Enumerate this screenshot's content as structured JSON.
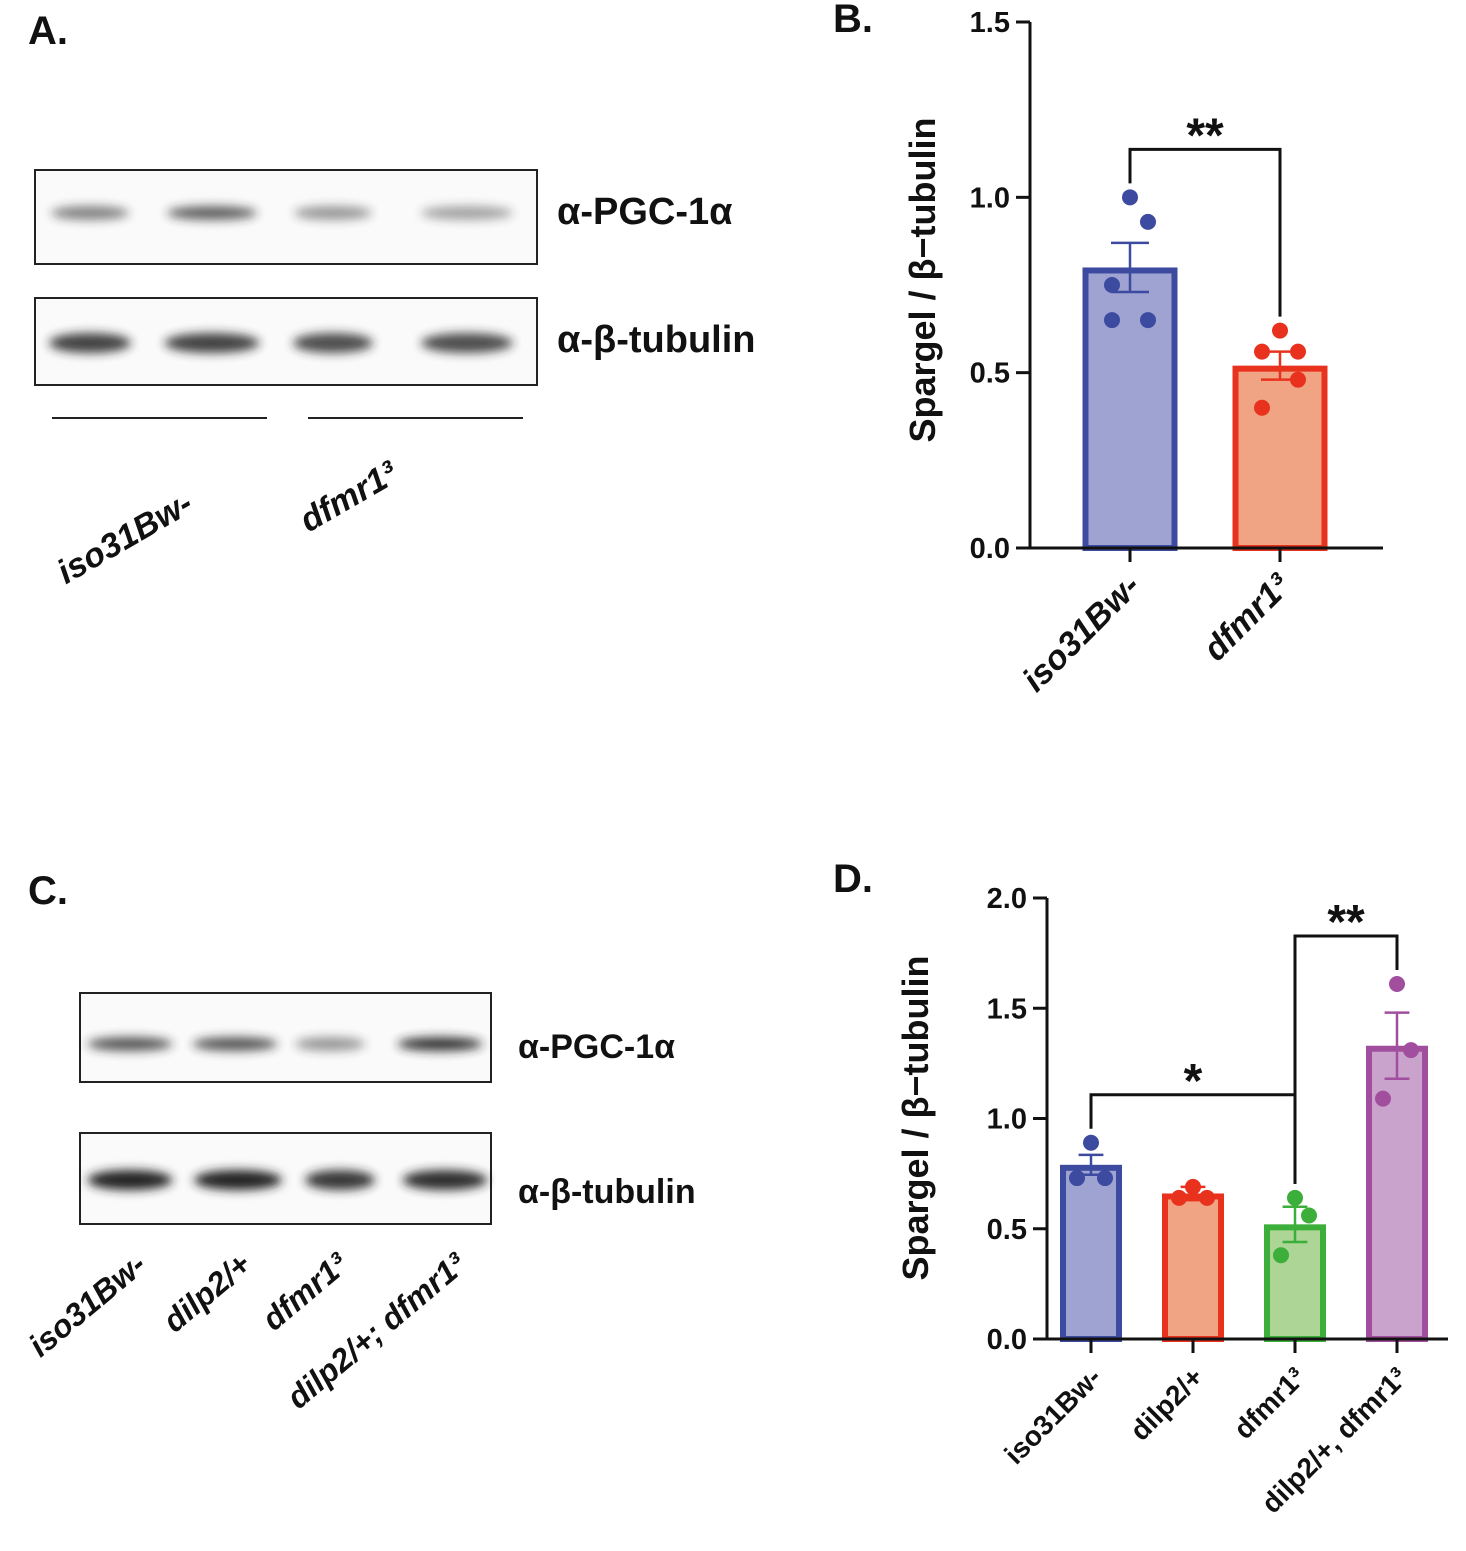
{
  "blots": [
    {
      "panel_label": "A.",
      "bands": [
        "α-PGC-1α",
        "α-β-tubulin"
      ],
      "lanes": [
        "iso31Bw-",
        "dfmr1³"
      ]
    },
    {
      "panel_label": "C.",
      "bands": [
        "α-PGC-1α",
        "α-β-tubulin"
      ],
      "lanes": [
        "iso31Bw-",
        "dilp2/+",
        "dfmr1³",
        "dilp2/+; dfmr1³"
      ]
    }
  ],
  "chart_data": [
    {
      "type": "bar",
      "panel_label": "B.",
      "y_label": "Spargel / β−tubulin",
      "categories": [
        "iso31Bw-",
        "dfmr1³"
      ],
      "values": [
        0.8,
        0.52
      ],
      "errors": [
        0.07,
        0.04
      ],
      "points": [
        [
          1.0,
          0.93,
          0.75,
          0.65,
          0.65
        ],
        [
          0.62,
          0.56,
          0.56,
          0.48,
          0.4
        ]
      ],
      "colors": [
        "#9fa3d2",
        "#f0a483"
      ],
      "edge_colors": [
        "#3c4aa0",
        "#e8321e"
      ],
      "ylim": [
        0,
        1.5
      ],
      "yticks": [
        {
          "value": 0,
          "label": "0.0"
        },
        0.5,
        {
          "value": 1,
          "label": "1.0"
        },
        1.5
      ],
      "comparisons": [
        {
          "label": "**",
          "between": [
            0,
            1
          ]
        }
      ]
    },
    {
      "type": "bar",
      "panel_label": "D.",
      "y_label": "Spargel / β−tubulin",
      "categories": [
        "iso31Bw-",
        "dilp2/+",
        "dfmr1³",
        "dilp2/+, dfmr1³"
      ],
      "values": [
        0.79,
        0.66,
        0.52,
        1.33
      ],
      "errors": [
        0.045,
        0.03,
        0.08,
        0.15
      ],
      "points": [
        [
          0.89,
          0.73,
          0.73
        ],
        [
          0.69,
          0.64,
          0.64
        ],
        [
          0.64,
          0.56,
          0.38
        ],
        [
          1.61,
          1.31,
          1.09
        ]
      ],
      "colors": [
        "#9fa3d2",
        "#f0a483",
        "#acd596",
        "#c9a3cc"
      ],
      "edge_colors": [
        "#3c4aa0",
        "#e8321e",
        "#3cae3a",
        "#a24e9e"
      ],
      "ylim": [
        0,
        2
      ],
      "yticks": [
        {
          "value": 0,
          "label": "0.0"
        },
        0.5,
        {
          "value": 1,
          "label": "1.0"
        },
        1.5,
        {
          "value": 2,
          "label": "2.0"
        }
      ],
      "comparisons": [
        {
          "label": "*",
          "between": [
            0,
            2
          ]
        },
        {
          "label": "**",
          "between": [
            2,
            3
          ]
        }
      ]
    }
  ]
}
